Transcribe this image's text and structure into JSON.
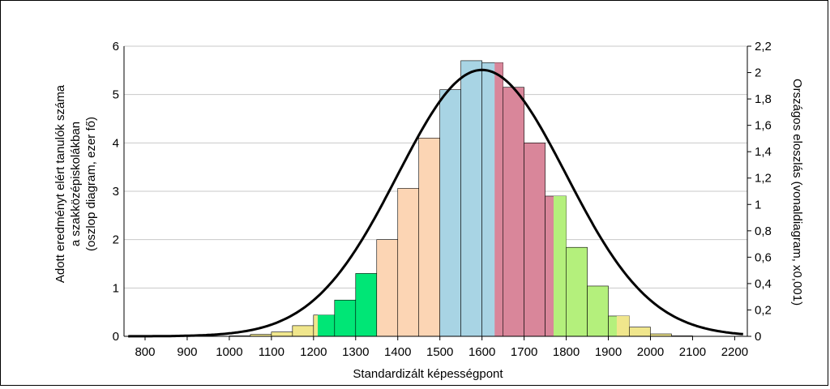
{
  "chart_data": {
    "type": "bar",
    "xlabel": "Standardizált képességpont",
    "ylabel_lines": [
      "Adott eredményt elért tanulók száma",
      "a szakközépiskolákban",
      "(oszlop diagram, ezer fő)"
    ],
    "y2label": "Országos eloszlás (vonaldiagram, x0,001)",
    "xlim": [
      750,
      2230
    ],
    "ylim": [
      0,
      6
    ],
    "y2lim": [
      0,
      2.2
    ],
    "x_ticks": [
      "800",
      "900",
      "1000",
      "1100",
      "1200",
      "1300",
      "1400",
      "1500",
      "1600",
      "1700",
      "1800",
      "1900",
      "2000",
      "2100",
      "2200"
    ],
    "y_ticks": [
      "0",
      "1",
      "2",
      "3",
      "4",
      "5",
      "6"
    ],
    "y2_ticks": [
      "0",
      "0,2",
      "0,4",
      "0,6",
      "0,8",
      "1",
      "1,2",
      "1,4",
      "1,6",
      "1,8",
      "2",
      "2,2"
    ],
    "grid": true,
    "bar_width": 50,
    "bars": [
      {
        "x": 1000,
        "value": 0.01,
        "color": "#f0e68c"
      },
      {
        "x": 1050,
        "value": 0.04,
        "color": "#f0e68c"
      },
      {
        "x": 1100,
        "value": 0.09,
        "color": "#f0e68c"
      },
      {
        "x": 1150,
        "value": 0.22,
        "color": "#f0e68c"
      },
      {
        "x": 1200,
        "value": 0.44,
        "color": "#f0e68c",
        "overlay": {
          "x": 1210,
          "width": 40,
          "color": "#00e676"
        }
      },
      {
        "x": 1250,
        "value": 0.75,
        "color": "#00e676"
      },
      {
        "x": 1300,
        "value": 1.3,
        "color": "#00e676"
      },
      {
        "x": 1350,
        "value": 2.0,
        "color": "#fcd5b4"
      },
      {
        "x": 1400,
        "value": 3.06,
        "color": "#fcd5b4"
      },
      {
        "x": 1450,
        "value": 4.1,
        "color": "#fcd5b4"
      },
      {
        "x": 1500,
        "value": 5.1,
        "color": "#a8d4e4"
      },
      {
        "x": 1550,
        "value": 5.7,
        "color": "#a8d4e4"
      },
      {
        "x": 1600,
        "value": 5.66,
        "color": "#a8d4e4",
        "overlay": {
          "x": 1630,
          "width": 20,
          "color": "#d9869a"
        }
      },
      {
        "x": 1650,
        "value": 5.15,
        "color": "#d9869a"
      },
      {
        "x": 1700,
        "value": 4.0,
        "color": "#d9869a"
      },
      {
        "x": 1750,
        "value": 2.9,
        "color": "#d9869a",
        "overlay": {
          "x": 1770,
          "width": 30,
          "color": "#b4f07c"
        }
      },
      {
        "x": 1800,
        "value": 1.84,
        "color": "#b4f07c"
      },
      {
        "x": 1850,
        "value": 1.04,
        "color": "#b4f07c"
      },
      {
        "x": 1900,
        "value": 0.42,
        "color": "#b4f07c",
        "overlay": {
          "x": 1920,
          "width": 30,
          "color": "#f0e68c"
        }
      },
      {
        "x": 1950,
        "value": 0.19,
        "color": "#f0e68c"
      },
      {
        "x": 2000,
        "value": 0.05,
        "color": "#f0e68c"
      },
      {
        "x": 2050,
        "value": 0.01,
        "color": "#f0e68c"
      }
    ],
    "curve": {
      "type": "normal",
      "mean": 1600,
      "sd": 200,
      "peak": 2.02,
      "x_range": [
        760,
        2220
      ]
    }
  }
}
